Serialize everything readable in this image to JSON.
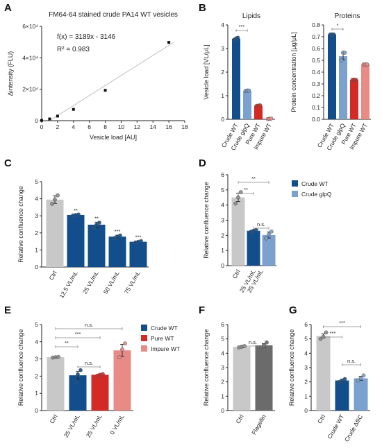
{
  "chart_data": [
    {
      "panel": "A",
      "type": "scatter",
      "title": "FM64-64 stained crude PA14 WT vesicles",
      "xlabel": "Vesicle load [AU]",
      "ylabel": "Δintensity (FLU)",
      "xlim": [
        0,
        18
      ],
      "ylim": [
        0,
        60000
      ],
      "xticks": [
        "0",
        "2",
        "4",
        "6",
        "8",
        "10",
        "12",
        "14",
        "16",
        "18"
      ],
      "yticks": [
        "0",
        "2×10⁴",
        "4×10⁴",
        "6×10⁴"
      ],
      "x": [
        0,
        1,
        2,
        4,
        8,
        16
      ],
      "y": [
        150,
        1100,
        2900,
        7200,
        19300,
        49800
      ],
      "fit_line": {
        "slope": 3189,
        "intercept": -3146
      },
      "annotations": [
        "f(x) = 3189x - 3146",
        "R² = 0.983"
      ]
    },
    {
      "panel": "B",
      "type": "bar",
      "title": "Lipids",
      "ylabel": "Vesicle load [VL/μL]",
      "ylim": [
        0,
        4
      ],
      "yticks": [
        "0",
        "1",
        "2",
        "3",
        "4"
      ],
      "categories": [
        "Crude WT",
        "Crude glpQ",
        "Pure WT",
        "Impure WT"
      ],
      "values": [
        3.42,
        1.21,
        0.58,
        0.02
      ],
      "errors": [
        0.04,
        0.02,
        0.02,
        0.0
      ],
      "points": [
        [
          3.38,
          3.43,
          3.46
        ],
        [
          1.2,
          1.22,
          1.22
        ],
        [
          0.57,
          0.58,
          0.59
        ],
        [
          0.01,
          0.02,
          0.03
        ]
      ],
      "colors": [
        "#124e8c",
        "#7ba1cf",
        "#d42a25",
        "#e88a86"
      ],
      "significance": [
        {
          "from": 0,
          "to": 1,
          "label": "***"
        }
      ]
    },
    {
      "panel": "B",
      "type": "bar",
      "title": "Proteins",
      "ylabel": "Protein concentration [μg/μL]",
      "ylim": [
        0,
        0.8
      ],
      "yticks": [
        "0.0",
        "0.1",
        "0.2",
        "0.3",
        "0.4",
        "0.5",
        "0.6",
        "0.7",
        "0.8"
      ],
      "categories": [
        "Crude WT",
        "Crude glpQ",
        "Pure WT",
        "Impure WT"
      ],
      "values": [
        0.72,
        0.535,
        0.335,
        0.465
      ],
      "errors": [
        0.0,
        0.03,
        0.0,
        0.0
      ],
      "points": [
        [
          0.72,
          0.72,
          0.72
        ],
        [
          0.5,
          0.565,
          0.565
        ],
        [
          0.335,
          0.335,
          0.335
        ],
        [
          0.465,
          0.465,
          0.465
        ]
      ],
      "colors": [
        "#124e8c",
        "#7ba1cf",
        "#d42a25",
        "#e88a86"
      ],
      "significance": [
        {
          "from": 0,
          "to": 1,
          "label": "*"
        }
      ]
    },
    {
      "panel": "C",
      "type": "bar",
      "ylabel": "Relative confluence change",
      "ylim": [
        0,
        5
      ],
      "yticks": [
        "0",
        "1",
        "2",
        "3",
        "4",
        "5"
      ],
      "categories": [
        "Ctrl",
        "12.5 VL/mL",
        "25 VL/mL",
        "50 VL/mL",
        "75 VL/mL"
      ],
      "values": [
        3.95,
        3.05,
        2.48,
        1.78,
        1.48
      ],
      "errors": [
        0.22,
        0.03,
        0.15,
        0.08,
        0.04
      ],
      "points": [
        [
          3.7,
          3.95,
          4.2
        ],
        [
          3.02,
          3.05,
          3.08
        ],
        [
          2.3,
          2.48,
          2.6
        ],
        [
          1.7,
          1.78,
          1.85
        ],
        [
          1.44,
          1.48,
          1.52
        ]
      ],
      "colors": [
        "#c8c8c8",
        "#124e8c",
        "#124e8c",
        "#124e8c",
        "#124e8c"
      ],
      "stars": [
        "",
        "**",
        "**",
        "***",
        "***"
      ]
    },
    {
      "panel": "D",
      "type": "bar",
      "ylabel": "Relative confluence change",
      "ylim": [
        0,
        6
      ],
      "yticks": [
        "0",
        "1",
        "2",
        "3",
        "4",
        "5",
        "6"
      ],
      "categories": [
        "Ctrl",
        "25 VL/mL",
        ""
      ],
      "values": [
        4.5,
        2.3,
        2.02
      ],
      "errors": [
        0.27,
        0.06,
        0.2
      ],
      "points": [
        [
          4.1,
          4.5,
          4.85
        ],
        [
          2.24,
          2.3,
          2.36
        ],
        [
          1.8,
          2.05,
          2.25
        ]
      ],
      "colors": [
        "#c8c8c8",
        "#124e8c",
        "#7ba1cf"
      ],
      "legend": [
        {
          "name": "Crude WT",
          "color": "#124e8c"
        },
        {
          "name": "Crude glpQ",
          "color": "#7ba1cf"
        }
      ],
      "significance": [
        {
          "from": 0,
          "to": 2,
          "label": "**"
        },
        {
          "from": 0,
          "to": 1,
          "label": "**"
        },
        {
          "from": 1,
          "to": 2,
          "label": "n.s."
        }
      ]
    },
    {
      "panel": "E",
      "type": "bar",
      "ylabel": "Relative confluence change",
      "ylim": [
        0,
        5
      ],
      "yticks": [
        "0",
        "1",
        "2",
        "3",
        "4",
        "5"
      ],
      "categories": [
        "Ctrl",
        "25 VL/mL",
        "25 VL/mL",
        "0 VL/mL"
      ],
      "values": [
        3.1,
        2.05,
        2.08,
        3.5
      ],
      "errors": [
        0.02,
        0.22,
        0.05,
        0.35
      ],
      "points": [
        [
          3.08,
          3.1,
          3.12
        ],
        [
          1.7,
          2.1,
          2.35
        ],
        [
          2.03,
          2.08,
          2.12
        ],
        [
          3.1,
          3.55,
          3.9
        ]
      ],
      "colors": [
        "#c8c8c8",
        "#124e8c",
        "#d42a25",
        "#e88a86"
      ],
      "legend": [
        {
          "name": "Crude WT",
          "color": "#124e8c"
        },
        {
          "name": "Pure WT",
          "color": "#d42a25"
        },
        {
          "name": "Impure WT",
          "color": "#e88a86"
        }
      ],
      "significance": [
        {
          "from": 0,
          "to": 3,
          "label": "n.s."
        },
        {
          "from": 0,
          "to": 2,
          "label": "***"
        },
        {
          "from": 0,
          "to": 1,
          "label": "**"
        },
        {
          "from": 1,
          "to": 2,
          "label": "n.s."
        }
      ]
    },
    {
      "panel": "F",
      "type": "bar",
      "ylabel": "Relative confluence change",
      "ylim": [
        0,
        6
      ],
      "yticks": [
        "0",
        "1",
        "2",
        "3",
        "4",
        "5",
        "6"
      ],
      "categories": [
        "Ctrl",
        "Flagellin"
      ],
      "values": [
        4.45,
        4.55
      ],
      "errors": [
        0.06,
        0.12
      ],
      "points": [
        [
          4.4,
          4.45,
          4.5
        ],
        [
          4.4,
          4.55,
          4.75
        ]
      ],
      "colors": [
        "#c8c8c8",
        "#6b6b6b"
      ],
      "significance": [
        {
          "from": 0,
          "to": 1,
          "label": "n.s."
        }
      ]
    },
    {
      "panel": "G",
      "type": "bar",
      "ylabel": "Relative confluence change",
      "ylim": [
        0,
        6
      ],
      "yticks": [
        "0",
        "1",
        "2",
        "3",
        "4",
        "5",
        "6"
      ],
      "categories": [
        "Ctrl",
        "Crude WT",
        "Crude ΔfliC"
      ],
      "values": [
        5.2,
        2.1,
        2.25
      ],
      "errors": [
        0.15,
        0.08,
        0.14
      ],
      "points": [
        [
          5.0,
          5.15,
          5.45
        ],
        [
          2.0,
          2.1,
          2.2
        ],
        [
          2.1,
          2.25,
          2.45
        ]
      ],
      "colors": [
        "#c8c8c8",
        "#124e8c",
        "#7ba1cf"
      ],
      "significance": [
        {
          "from": 0,
          "to": 2,
          "label": "***"
        },
        {
          "from": 0,
          "to": 1,
          "label": "***"
        },
        {
          "from": 1,
          "to": 2,
          "label": "n.s."
        }
      ]
    }
  ]
}
